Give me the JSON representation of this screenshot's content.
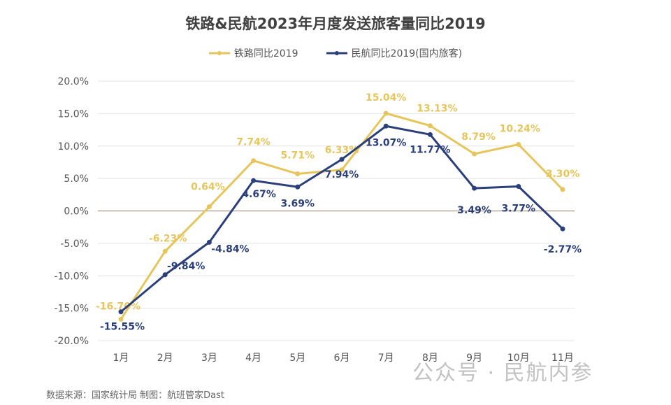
{
  "chart_data": {
    "type": "line",
    "title": "铁路&民航2023年月度发送旅客量同比2019",
    "categories": [
      "1月",
      "2月",
      "3月",
      "4月",
      "5月",
      "6月",
      "7月",
      "8月",
      "9月",
      "10月",
      "11月"
    ],
    "series": [
      {
        "name": "铁路同比2019",
        "color": "#E6C65C",
        "values": [
          -16.7,
          -6.23,
          0.64,
          7.74,
          5.71,
          6.33,
          15.04,
          13.13,
          8.79,
          10.24,
          3.3
        ],
        "labels": [
          "-16.70%",
          "-6.23%",
          "0.64%",
          "7.74%",
          "5.71%",
          "6.33%",
          "15.04%",
          "13.13%",
          "8.79%",
          "10.24%",
          "3.30%"
        ]
      },
      {
        "name": "民航同比2019(国内旅客)",
        "color": "#2B3F7A",
        "values": [
          -15.55,
          -9.84,
          -4.84,
          4.67,
          3.69,
          7.94,
          13.07,
          11.77,
          3.49,
          3.77,
          -2.77
        ],
        "labels": [
          "-15.55%",
          "-9.84%",
          "-4.84%",
          "4.67%",
          "3.69%",
          "7.94%",
          "13.07%",
          "11.77%",
          "3.49%",
          "3.77%",
          "-2.77%"
        ]
      }
    ],
    "ylim": [
      -20,
      20
    ],
    "yticks": [
      "20.0%",
      "15.0%",
      "10.0%",
      "5.0%",
      "0.0%",
      "-5.0%",
      "-10.0%",
      "-15.0%",
      "-20.0%"
    ],
    "ytick_values": [
      20,
      15,
      10,
      5,
      0,
      -5,
      -10,
      -15,
      -20
    ],
    "grid": true,
    "legend": "top"
  },
  "source": "数据来源：国家统计局  制图：航班管家Dast",
  "watermark": "公众号 · 民航内参"
}
